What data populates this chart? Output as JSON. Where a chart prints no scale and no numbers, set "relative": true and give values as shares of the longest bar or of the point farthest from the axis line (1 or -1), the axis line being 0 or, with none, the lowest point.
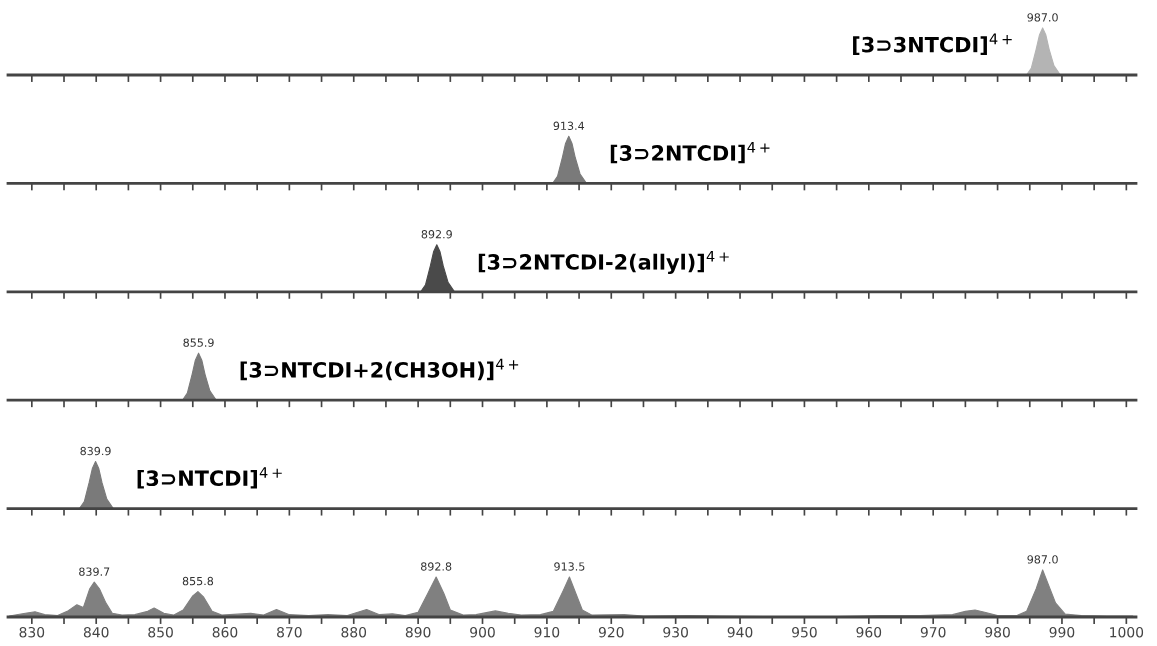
{
  "chart_data": [
    {
      "type": "area",
      "relative": true,
      "tick_labels": false,
      "xlim": [
        826.3,
        1001.5
      ],
      "xticks": [
        830,
        {
          "value": 835,
          "label": null
        },
        840,
        {
          "value": 845,
          "label": null
        },
        850,
        {
          "value": 855,
          "label": null
        },
        860,
        {
          "value": 865,
          "label": null
        },
        870,
        {
          "value": 875,
          "label": null
        },
        880,
        {
          "value": 885,
          "label": null
        },
        890,
        {
          "value": 895,
          "label": null
        },
        900,
        {
          "value": 905,
          "label": null
        },
        910,
        {
          "value": 915,
          "label": null
        },
        920,
        {
          "value": 925,
          "label": null
        },
        930,
        {
          "value": 935,
          "label": null
        },
        940,
        {
          "value": 945,
          "label": null
        },
        950,
        {
          "value": 955,
          "label": null
        },
        960,
        {
          "value": 965,
          "label": null
        },
        970,
        {
          "value": 975,
          "label": null
        },
        980,
        {
          "value": 985,
          "label": null
        },
        990,
        {
          "value": 995,
          "label": null
        },
        1000
      ],
      "series": [
        {
          "name": "[3⊃3NTCDI]$^{4+}$",
          "color": "#b4b4b4",
          "x": [
            984.5,
            985.25,
            986.0,
            986.5,
            987.0,
            987.5,
            988.0,
            988.75,
            989.75
          ],
          "values": [
            0,
            0.15,
            0.55,
            0.85,
            1,
            0.85,
            0.55,
            0.2,
            0
          ]
        }
      ],
      "annotations": [
        {
          "text": "987.0",
          "x": 987.0,
          "y": 1
        }
      ]
    },
    {
      "type": "area",
      "relative": true,
      "tick_labels": false,
      "xlim": [
        826.3,
        1001.5
      ],
      "xticks": [
        830,
        {
          "value": 835,
          "label": null
        },
        840,
        {
          "value": 845,
          "label": null
        },
        850,
        {
          "value": 855,
          "label": null
        },
        860,
        {
          "value": 865,
          "label": null
        },
        870,
        {
          "value": 875,
          "label": null
        },
        880,
        {
          "value": 885,
          "label": null
        },
        890,
        {
          "value": 895,
          "label": null
        },
        900,
        {
          "value": 905,
          "label": null
        },
        910,
        {
          "value": 915,
          "label": null
        },
        920,
        {
          "value": 925,
          "label": null
        },
        930,
        {
          "value": 935,
          "label": null
        },
        940,
        {
          "value": 945,
          "label": null
        },
        950,
        {
          "value": 955,
          "label": null
        },
        960,
        {
          "value": 965,
          "label": null
        },
        970,
        {
          "value": 975,
          "label": null
        },
        980,
        {
          "value": 985,
          "label": null
        },
        990,
        {
          "value": 995,
          "label": null
        },
        1000
      ],
      "series": [
        {
          "name": "[3⊃2NTCDI]$^{4+}$",
          "color": "#7a7a7a",
          "x": [
            910.9,
            911.65,
            912.4,
            912.9,
            913.4,
            913.9,
            914.4,
            915.15,
            916.15
          ],
          "values": [
            0,
            0.15,
            0.55,
            0.85,
            1,
            0.85,
            0.55,
            0.2,
            0
          ]
        }
      ],
      "annotations": [
        {
          "text": "913.4",
          "x": 913.4,
          "y": 1
        }
      ]
    },
    {
      "type": "area",
      "relative": true,
      "tick_labels": false,
      "xlim": [
        826.3,
        1001.5
      ],
      "xticks": [
        830,
        {
          "value": 835,
          "label": null
        },
        840,
        {
          "value": 845,
          "label": null
        },
        850,
        {
          "value": 855,
          "label": null
        },
        860,
        {
          "value": 865,
          "label": null
        },
        870,
        {
          "value": 875,
          "label": null
        },
        880,
        {
          "value": 885,
          "label": null
        },
        890,
        {
          "value": 895,
          "label": null
        },
        900,
        {
          "value": 905,
          "label": null
        },
        910,
        {
          "value": 915,
          "label": null
        },
        920,
        {
          "value": 925,
          "label": null
        },
        930,
        {
          "value": 935,
          "label": null
        },
        940,
        {
          "value": 945,
          "label": null
        },
        950,
        {
          "value": 955,
          "label": null
        },
        960,
        {
          "value": 965,
          "label": null
        },
        970,
        {
          "value": 975,
          "label": null
        },
        980,
        {
          "value": 985,
          "label": null
        },
        990,
        {
          "value": 995,
          "label": null
        },
        1000
      ],
      "series": [
        {
          "name": "[3⊃2NTCDI-2(allyl)]$^{4+}$",
          "color": "#4a4a4a",
          "x": [
            890.4,
            891.15,
            891.9,
            892.4,
            892.9,
            893.4,
            893.9,
            894.65,
            895.65
          ],
          "values": [
            0,
            0.15,
            0.55,
            0.85,
            1,
            0.85,
            0.55,
            0.2,
            0
          ]
        }
      ],
      "annotations": [
        {
          "text": "892.9",
          "x": 892.9,
          "y": 1
        }
      ]
    },
    {
      "type": "area",
      "relative": true,
      "tick_labels": false,
      "xlim": [
        826.3,
        1001.5
      ],
      "xticks": [
        830,
        {
          "value": 835,
          "label": null
        },
        840,
        {
          "value": 845,
          "label": null
        },
        850,
        {
          "value": 855,
          "label": null
        },
        860,
        {
          "value": 865,
          "label": null
        },
        870,
        {
          "value": 875,
          "label": null
        },
        880,
        {
          "value": 885,
          "label": null
        },
        890,
        {
          "value": 895,
          "label": null
        },
        900,
        {
          "value": 905,
          "label": null
        },
        910,
        {
          "value": 915,
          "label": null
        },
        920,
        {
          "value": 925,
          "label": null
        },
        930,
        {
          "value": 935,
          "label": null
        },
        940,
        {
          "value": 945,
          "label": null
        },
        950,
        {
          "value": 955,
          "label": null
        },
        960,
        {
          "value": 965,
          "label": null
        },
        970,
        {
          "value": 975,
          "label": null
        },
        980,
        {
          "value": 985,
          "label": null
        },
        990,
        {
          "value": 995,
          "label": null
        },
        1000
      ],
      "series": [
        {
          "name": "[3⊃NTCDI+2(CH3OH)]$^{4+}$",
          "color": "#7a7a7a",
          "x": [
            853.4,
            854.15,
            854.9,
            855.4,
            855.9,
            856.4,
            856.9,
            857.65,
            858.65
          ],
          "values": [
            0,
            0.15,
            0.55,
            0.85,
            1,
            0.85,
            0.55,
            0.2,
            0
          ]
        }
      ],
      "annotations": [
        {
          "text": "855.9",
          "x": 855.9,
          "y": 1
        }
      ]
    },
    {
      "type": "area",
      "relative": true,
      "tick_labels": false,
      "xlim": [
        826.3,
        1001.5
      ],
      "xticks": [
        830,
        {
          "value": 835,
          "label": null
        },
        840,
        {
          "value": 845,
          "label": null
        },
        850,
        {
          "value": 855,
          "label": null
        },
        860,
        {
          "value": 865,
          "label": null
        },
        870,
        {
          "value": 875,
          "label": null
        },
        880,
        {
          "value": 885,
          "label": null
        },
        890,
        {
          "value": 895,
          "label": null
        },
        900,
        {
          "value": 905,
          "label": null
        },
        910,
        {
          "value": 915,
          "label": null
        },
        920,
        {
          "value": 925,
          "label": null
        },
        930,
        {
          "value": 935,
          "label": null
        },
        940,
        {
          "value": 945,
          "label": null
        },
        950,
        {
          "value": 955,
          "label": null
        },
        960,
        {
          "value": 965,
          "label": null
        },
        970,
        {
          "value": 975,
          "label": null
        },
        980,
        {
          "value": 985,
          "label": null
        },
        990,
        {
          "value": 995,
          "label": null
        },
        1000
      ],
      "series": [
        {
          "name": "[3⊃NTCDI]$^{4+}$",
          "color": "#7a7a7a",
          "x": [
            837.4,
            838.15,
            838.9,
            839.4,
            839.9,
            840.4,
            840.9,
            841.65,
            842.65
          ],
          "values": [
            0,
            0.15,
            0.55,
            0.85,
            1,
            0.85,
            0.55,
            0.2,
            0
          ]
        }
      ],
      "annotations": [
        {
          "text": "839.9",
          "x": 839.9,
          "y": 1
        }
      ]
    },
    {
      "type": "area",
      "relative": true,
      "tick_labels": "x",
      "xlim": [
        826.3,
        1001.5
      ],
      "xticks": [
        830,
        {
          "value": 835,
          "label": null
        },
        840,
        {
          "value": 845,
          "label": null
        },
        850,
        {
          "value": 855,
          "label": null
        },
        860,
        {
          "value": 865,
          "label": null
        },
        870,
        {
          "value": 875,
          "label": null
        },
        880,
        {
          "value": 885,
          "label": null
        },
        890,
        {
          "value": 895,
          "label": null
        },
        900,
        {
          "value": 905,
          "label": null
        },
        910,
        {
          "value": 915,
          "label": null
        },
        920,
        {
          "value": 925,
          "label": null
        },
        930,
        {
          "value": 935,
          "label": null
        },
        940,
        {
          "value": 945,
          "label": null
        },
        950,
        {
          "value": 955,
          "label": null
        },
        960,
        {
          "value": 965,
          "label": null
        },
        970,
        {
          "value": 975,
          "label": null
        },
        980,
        {
          "value": 985,
          "label": null
        },
        990,
        {
          "value": 995,
          "label": null
        },
        1000
      ],
      "series": [
        {
          "color": "#808080",
          "x": [
            826.5,
            829,
            830.5,
            832,
            834,
            835.5,
            837,
            838,
            839,
            839.7,
            840.5,
            841.5,
            842.5,
            844,
            846,
            848,
            849,
            850.5,
            852,
            853.5,
            855,
            855.8,
            856.7,
            858,
            859.5,
            862,
            864,
            866,
            868,
            870,
            873,
            876,
            879,
            882,
            884,
            886,
            888,
            890,
            891.5,
            892.8,
            894,
            895,
            897,
            899,
            902,
            904,
            906,
            909,
            911,
            912.5,
            913.5,
            914.5,
            915.5,
            917,
            922,
            925,
            932,
            937,
            945,
            955,
            962,
            968,
            973,
            975,
            976.5,
            978,
            980,
            983,
            984.5,
            986,
            987,
            988,
            989,
            990.5,
            993,
            997,
            1001
          ],
          "values": [
            0.02,
            0.08,
            0.11,
            0.05,
            0.03,
            0.12,
            0.26,
            0.2,
            0.6,
            0.74,
            0.6,
            0.3,
            0.08,
            0.04,
            0.05,
            0.12,
            0.19,
            0.08,
            0.04,
            0.15,
            0.45,
            0.54,
            0.42,
            0.12,
            0.04,
            0.06,
            0.08,
            0.04,
            0.16,
            0.05,
            0.03,
            0.05,
            0.03,
            0.16,
            0.05,
            0.07,
            0.03,
            0.1,
            0.5,
            0.85,
            0.5,
            0.15,
            0.04,
            0.05,
            0.13,
            0.08,
            0.04,
            0.05,
            0.12,
            0.55,
            0.85,
            0.5,
            0.15,
            0.04,
            0.05,
            0.02,
            0.03,
            0.02,
            0.01,
            0.01,
            0.03,
            0.03,
            0.05,
            0.12,
            0.15,
            0.1,
            0.03,
            0.03,
            0.12,
            0.6,
            1,
            0.65,
            0.3,
            0.06,
            0.03,
            0.02,
            0.02
          ]
        }
      ],
      "annotations": [
        {
          "text": "839.7",
          "x": 839.7,
          "y": 0.74
        },
        {
          "text": "855.8",
          "x": 855.8,
          "y": 0.54
        },
        {
          "text": "892.8",
          "x": 892.8,
          "y": 0.85
        },
        {
          "text": "913.5",
          "x": 913.5,
          "y": 0.85
        },
        {
          "text": "987.0",
          "x": 987.0,
          "y": 1
        }
      ]
    }
  ]
}
